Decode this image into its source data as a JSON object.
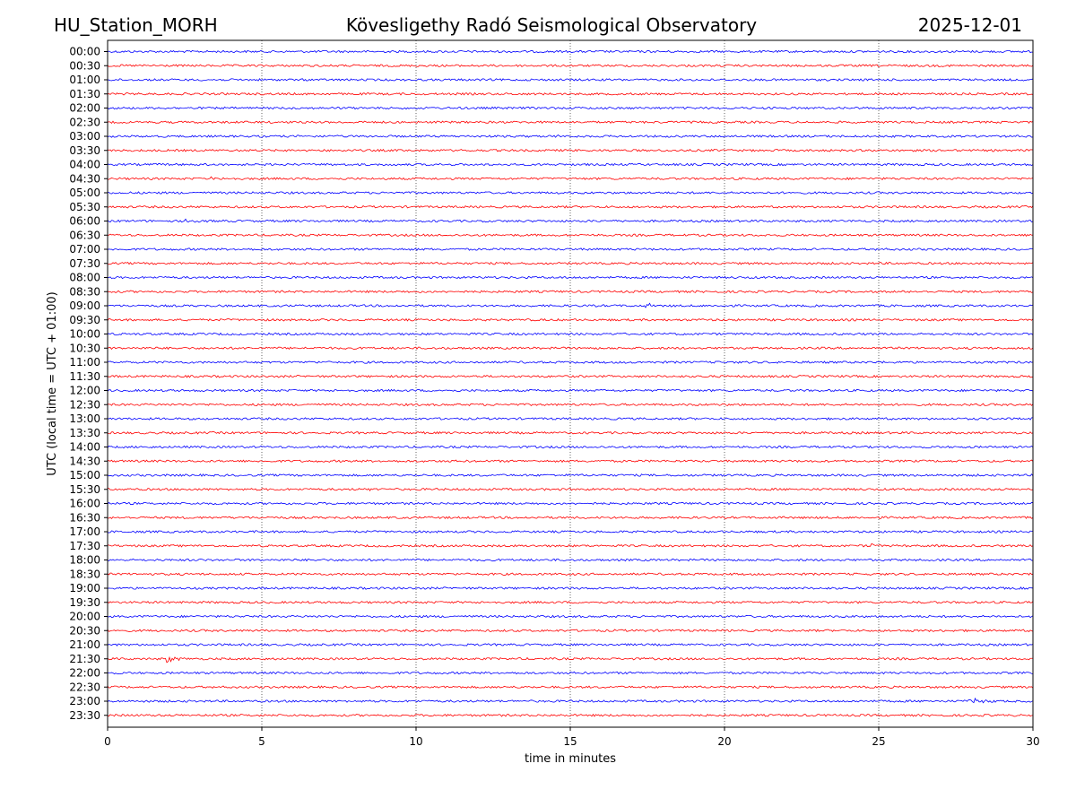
{
  "header": {
    "station": "HU_Station_MORH",
    "observatory": "Kövesligethy Radó Seismological Observatory",
    "date": "2025-12-01"
  },
  "chart_data": {
    "type": "line",
    "title": "Kövesligethy Radó Seismological Observatory",
    "xlabel": "time in minutes",
    "ylabel": "UTC (local time = UTC + 01:00)",
    "xlim": [
      0,
      30
    ],
    "xticks": [
      "0",
      "5",
      "10",
      "15",
      "20",
      "25",
      "30"
    ],
    "grid": "vertical dotted at x = 5, 10, 15, 20, 25",
    "colors": {
      "even_hour_trace": "#0000ff",
      "half_hour_trace": "#ff0000",
      "grid": "#000000"
    },
    "rows": [
      "00:00",
      "00:30",
      "01:00",
      "01:30",
      "02:00",
      "02:30",
      "03:00",
      "03:30",
      "04:00",
      "04:30",
      "05:00",
      "05:30",
      "06:00",
      "06:30",
      "07:00",
      "07:30",
      "08:00",
      "08:30",
      "09:00",
      "09:30",
      "10:00",
      "10:30",
      "11:00",
      "11:30",
      "12:00",
      "12:30",
      "13:00",
      "13:30",
      "14:00",
      "14:30",
      "15:00",
      "15:30",
      "16:00",
      "16:30",
      "17:00",
      "17:30",
      "18:00",
      "18:30",
      "19:00",
      "19:30",
      "20:00",
      "20:30",
      "21:00",
      "21:30",
      "22:00",
      "22:30",
      "23:00",
      "23:30"
    ],
    "noise_amplitude": 1.2,
    "events": [
      {
        "row": "03:00",
        "minute": 14.5,
        "duration": 0.6,
        "amplitude": 3
      },
      {
        "row": "04:30",
        "minute": 3.2,
        "duration": 0.6,
        "amplitude": 2
      },
      {
        "row": "06:00",
        "minute": 2.5,
        "duration": 1.2,
        "amplitude": 1.8
      },
      {
        "row": "09:00",
        "minute": 17.4,
        "duration": 0.6,
        "amplitude": 4
      },
      {
        "row": "11:00",
        "minute": 19.8,
        "duration": 0.3,
        "amplitude": 2.5
      },
      {
        "row": "14:00",
        "minute": 13.7,
        "duration": 0.2,
        "amplitude": 2.5
      },
      {
        "row": "15:30",
        "minute": 8.5,
        "duration": 0.5,
        "amplitude": 2
      },
      {
        "row": "17:30",
        "minute": 24.7,
        "duration": 0.25,
        "amplitude": 7
      },
      {
        "row": "20:00",
        "minute": 24.2,
        "duration": 0.3,
        "amplitude": 2.5
      },
      {
        "row": "21:30",
        "minute": 1.9,
        "duration": 0.8,
        "amplitude": 5
      },
      {
        "row": "23:00",
        "minute": 27.9,
        "duration": 1.2,
        "amplitude": 4
      }
    ]
  }
}
